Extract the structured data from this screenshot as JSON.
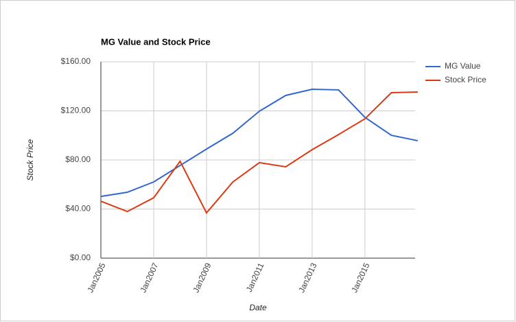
{
  "chart_data": {
    "type": "line",
    "title": "MG Value and Stock Price",
    "x_label": "Date",
    "y_label": "Stock Price",
    "x": [
      2005,
      2006,
      2007,
      2008,
      2009,
      2010,
      2011,
      2012,
      2013,
      2014,
      2015,
      2016,
      2017
    ],
    "series": [
      {
        "name": "MG Value",
        "color": "#3366cc",
        "values": [
          50.3,
          53.7,
          62.1,
          75.5,
          88.9,
          101.8,
          119.7,
          132.6,
          137.6,
          137.1,
          114.7,
          100.1,
          95.7
        ]
      },
      {
        "name": "Stock Price",
        "color": "#dc3912",
        "values": [
          46.4,
          38.0,
          49.2,
          78.9,
          36.9,
          62.1,
          77.8,
          74.4,
          88.4,
          100.7,
          113.6,
          134.8,
          135.4
        ]
      }
    ],
    "xlim": [
      2005,
      2016.9
    ],
    "xticks": [
      {
        "value": 2005,
        "label": "Jan2005"
      },
      {
        "value": 2007,
        "label": "Jan2007"
      },
      {
        "value": 2009,
        "label": "Jan2009"
      },
      {
        "value": 2011,
        "label": "Jan2011"
      },
      {
        "value": 2013,
        "label": "Jan2013"
      },
      {
        "value": 2015,
        "label": "Jan2015"
      }
    ],
    "ylim": [
      0,
      160
    ],
    "yticks": [
      {
        "value": 0,
        "label": "$0.00"
      },
      {
        "value": 40,
        "label": "$40.00"
      },
      {
        "value": 80,
        "label": "$80.00"
      },
      {
        "value": 120,
        "label": "$120.00"
      },
      {
        "value": 160,
        "label": "$160.00"
      }
    ],
    "grid": true,
    "legend": "right"
  }
}
